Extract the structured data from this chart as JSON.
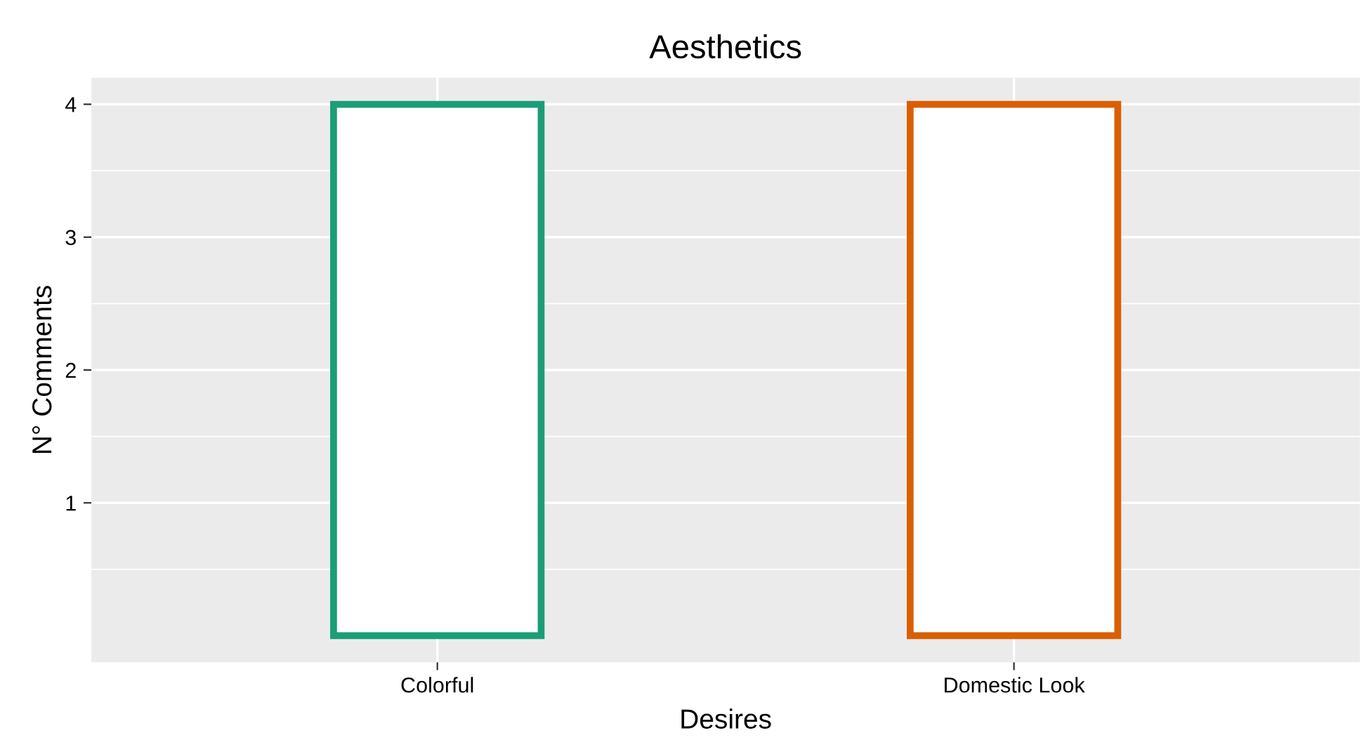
{
  "chart_data": {
    "type": "bar",
    "title": "Aesthetics",
    "xlabel": "Desires",
    "ylabel": "N° Comments",
    "categories": [
      "Colorful",
      "Domestic Look"
    ],
    "values": [
      4,
      4
    ],
    "colors": [
      "#1b9e77",
      "#d95f02"
    ],
    "ylim": [
      -0.2,
      4.2
    ],
    "yticks": [
      1,
      2,
      3,
      4
    ],
    "grid": true
  }
}
